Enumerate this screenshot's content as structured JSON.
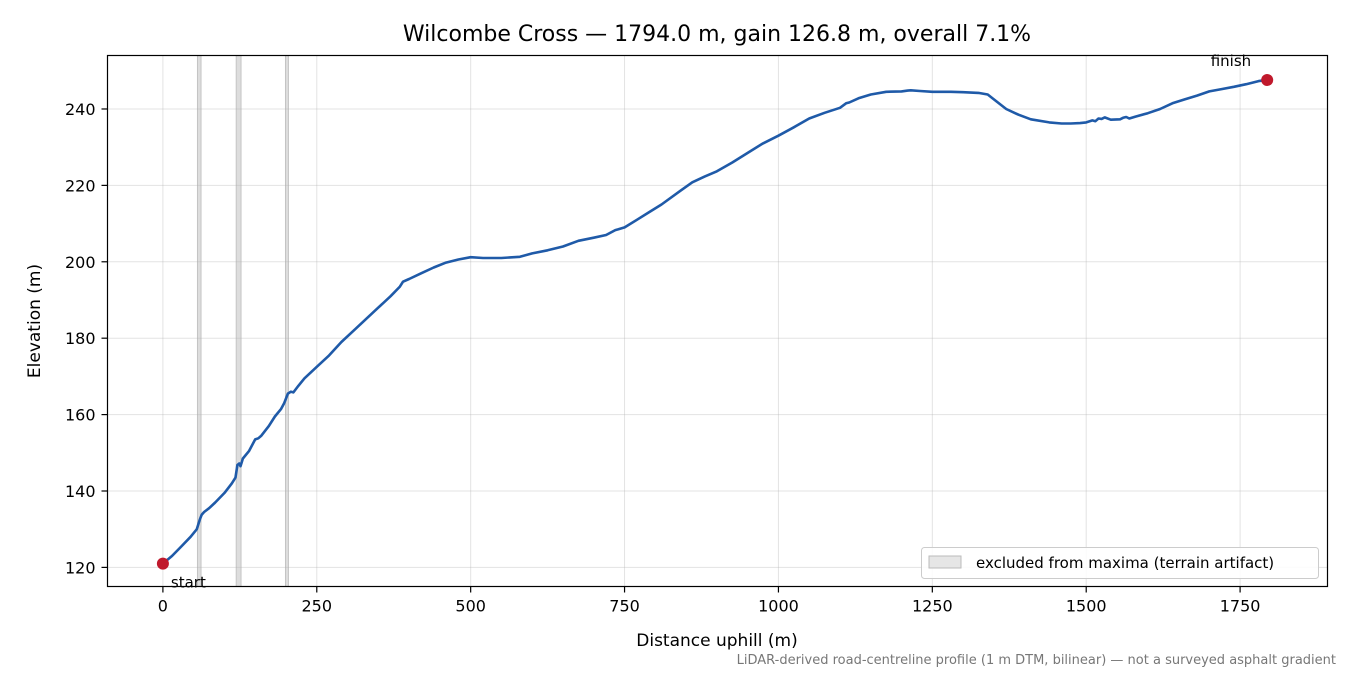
{
  "chart_data": {
    "type": "line",
    "title": "Wilcombe Cross — 1794.0 m, gain 126.8 m, overall 7.1%",
    "xlabel": "Distance uphill (m)",
    "ylabel": "Elevation (m)",
    "xlim": [
      -90,
      1892
    ],
    "ylim": [
      115,
      254
    ],
    "xticks": [
      0,
      250,
      500,
      750,
      1000,
      1250,
      1500,
      1750
    ],
    "xtick_labels": [
      "0",
      "250",
      "500",
      "750",
      "1000",
      "1250",
      "1500",
      "1750"
    ],
    "yticks": [
      120,
      140,
      160,
      180,
      200,
      220,
      240
    ],
    "ytick_labels": [
      "120",
      "140",
      "160",
      "180",
      "200",
      "220",
      "240"
    ],
    "grid": true,
    "legend_placement": "lower-right",
    "excluded_bands": {
      "label": "excluded from maxima (terrain artifact)",
      "ranges": [
        [
          56,
          62
        ],
        [
          119,
          127
        ],
        [
          199,
          204
        ]
      ],
      "color": "#d9d9d9"
    },
    "series": [
      {
        "color": "#1f5aa8",
        "x": [
          0,
          15,
          30,
          45,
          55,
          60,
          63,
          67,
          75,
          85,
          100,
          112,
          118,
          121,
          124,
          126,
          130,
          140,
          150,
          155,
          160,
          172,
          182,
          192,
          197,
          203,
          208,
          212,
          220,
          230,
          250,
          270,
          290,
          310,
          330,
          350,
          370,
          385,
          390,
          400,
          420,
          440,
          460,
          480,
          500,
          520,
          550,
          580,
          600,
          625,
          650,
          675,
          700,
          720,
          735,
          740,
          750,
          770,
          790,
          810,
          840,
          860,
          880,
          900,
          925,
          950,
          975,
          1000,
          1025,
          1050,
          1075,
          1100,
          1110,
          1115,
          1130,
          1150,
          1175,
          1200,
          1210,
          1215,
          1230,
          1250,
          1280,
          1300,
          1325,
          1340,
          1350,
          1370,
          1390,
          1410,
          1440,
          1460,
          1475,
          1490,
          1500,
          1510,
          1515,
          1520,
          1525,
          1530,
          1540,
          1555,
          1560,
          1565,
          1570,
          1580,
          1600,
          1620,
          1640,
          1660,
          1680,
          1700,
          1720,
          1740,
          1760,
          1780,
          1794
        ],
        "y": [
          121,
          123,
          125.5,
          128,
          130,
          132.5,
          133.8,
          134.5,
          135.5,
          137,
          139.5,
          142,
          143.5,
          146.8,
          147.2,
          146.5,
          148.5,
          150.5,
          153.5,
          153.8,
          154.5,
          157,
          159.5,
          161.5,
          163,
          165.5,
          166,
          165.8,
          167.5,
          169.5,
          172.5,
          175.5,
          179,
          182,
          185,
          188,
          191,
          193.5,
          194.8,
          195.5,
          197,
          198.5,
          199.8,
          200.6,
          201.2,
          201,
          201,
          201.3,
          202.2,
          203,
          204,
          205.5,
          206.3,
          207,
          208.3,
          208.5,
          209,
          211,
          213,
          215,
          218.5,
          220.8,
          222.3,
          223.7,
          226,
          228.5,
          231,
          233,
          235.2,
          237.5,
          239,
          240.3,
          241.5,
          241.7,
          242.8,
          243.8,
          244.5,
          244.6,
          244.8,
          244.9,
          244.7,
          244.5,
          244.5,
          244.4,
          244.2,
          243.8,
          242.5,
          240,
          238.5,
          237.3,
          236.5,
          236.2,
          236.2,
          236.3,
          236.5,
          237,
          236.8,
          237.5,
          237.4,
          237.8,
          237.2,
          237.3,
          237.7,
          237.9,
          237.5,
          238,
          238.9,
          240,
          241.5,
          242.5,
          243.5,
          244.6,
          245.2,
          245.8,
          246.5,
          247.3,
          247.6
        ]
      }
    ],
    "endpoints": {
      "start": {
        "x": 0,
        "y": 121,
        "label": "start"
      },
      "finish": {
        "x": 1794,
        "y": 247.6,
        "label": "finish"
      },
      "color": "#c0192c"
    }
  },
  "footnote": "LiDAR-derived road-centreline profile (1 m DTM, bilinear) — not a surveyed asphalt gradient"
}
